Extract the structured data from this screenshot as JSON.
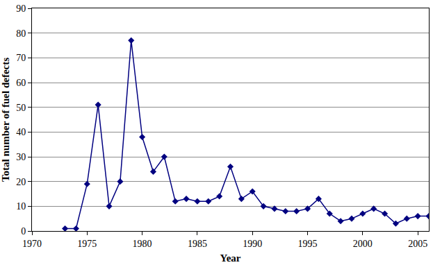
{
  "chart_data": {
    "type": "line",
    "x_label": "Year",
    "y_label": "Total number of fuel defects",
    "x": [
      1973,
      1974,
      1975,
      1976,
      1977,
      1978,
      1979,
      1980,
      1981,
      1982,
      1983,
      1984,
      1985,
      1986,
      1987,
      1988,
      1989,
      1990,
      1991,
      1992,
      1993,
      1994,
      1995,
      1996,
      1997,
      1998,
      1999,
      2000,
      2001,
      2002,
      2003,
      2004,
      2005,
      2006
    ],
    "values": [
      1,
      1,
      19,
      51,
      10,
      20,
      77,
      38,
      24,
      30,
      12,
      13,
      12,
      12,
      14,
      26,
      13,
      16,
      10,
      9,
      8,
      8,
      9,
      13,
      7,
      4,
      5,
      7,
      9,
      7,
      3,
      5,
      6,
      6
    ],
    "color": "#000080",
    "marker": "diamond",
    "line_style": "solid",
    "xlim": [
      1970,
      2006
    ],
    "xticks": [
      1970,
      1975,
      1980,
      1985,
      1990,
      1995,
      2000,
      2005
    ],
    "ylim": [
      0,
      90
    ],
    "yticks": [
      0,
      10,
      20,
      30,
      40,
      50,
      60,
      70,
      80,
      90
    ],
    "grid": true
  }
}
